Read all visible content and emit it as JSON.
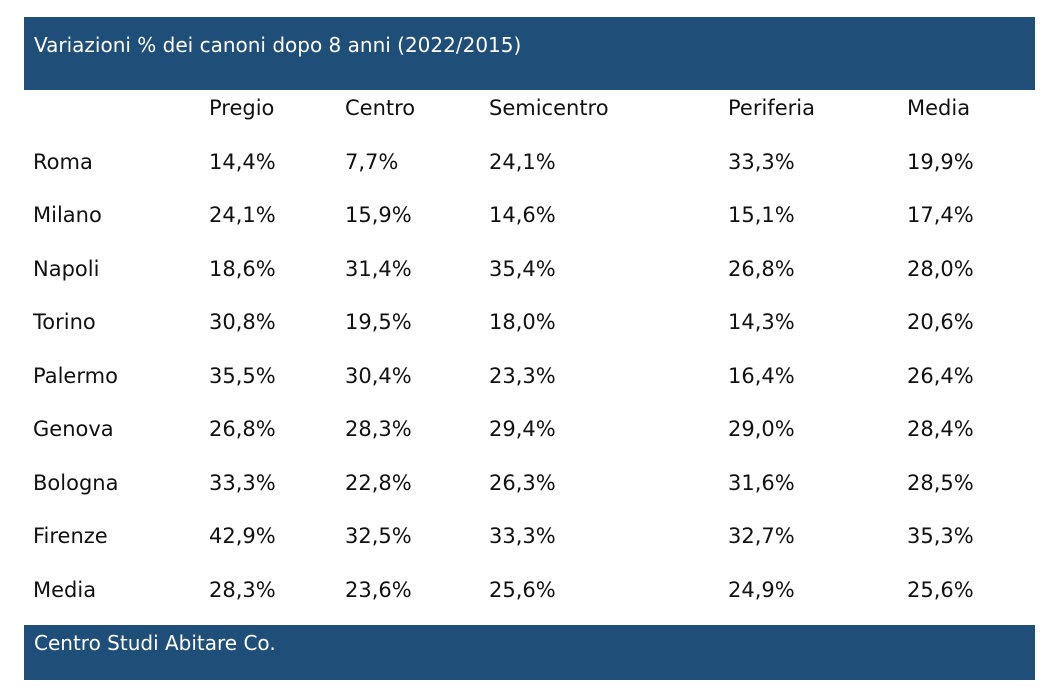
{
  "title": "Variazioni % dei canoni dopo 8 anni (2022/2015)",
  "footer": "Centro Studi Abitare Co.",
  "colors": {
    "band_background": "#1f4e79",
    "band_text": "#ffffff",
    "body_text": "#111111"
  },
  "chart_data": {
    "type": "table",
    "title": "Variazioni % dei canoni dopo 8 anni (2022/2015)",
    "columns": [
      "",
      "Pregio",
      "Centro",
      "Semicentro",
      "Periferia",
      "Media"
    ],
    "rows": [
      [
        "Roma",
        "14,4%",
        "7,7%",
        "24,1%",
        "33,3%",
        "19,9%"
      ],
      [
        "Milano",
        "24,1%",
        "15,9%",
        "14,6%",
        "15,1%",
        "17,4%"
      ],
      [
        "Napoli",
        "18,6%",
        "31,4%",
        "35,4%",
        "26,8%",
        "28,0%"
      ],
      [
        "Torino",
        "30,8%",
        "19,5%",
        "18,0%",
        "14,3%",
        "20,6%"
      ],
      [
        "Palermo",
        "35,5%",
        "30,4%",
        "23,3%",
        "16,4%",
        "26,4%"
      ],
      [
        "Genova",
        "26,8%",
        "28,3%",
        "29,4%",
        "29,0%",
        "28,4%"
      ],
      [
        "Bologna",
        "33,3%",
        "22,8%",
        "26,3%",
        "31,6%",
        "28,5%"
      ],
      [
        "Firenze",
        "42,9%",
        "32,5%",
        "33,3%",
        "32,7%",
        "35,3%"
      ],
      [
        "Media",
        "28,3%",
        "23,6%",
        "25,6%",
        "24,9%",
        "25,6%"
      ]
    ],
    "source": "Centro Studi Abitare Co."
  }
}
